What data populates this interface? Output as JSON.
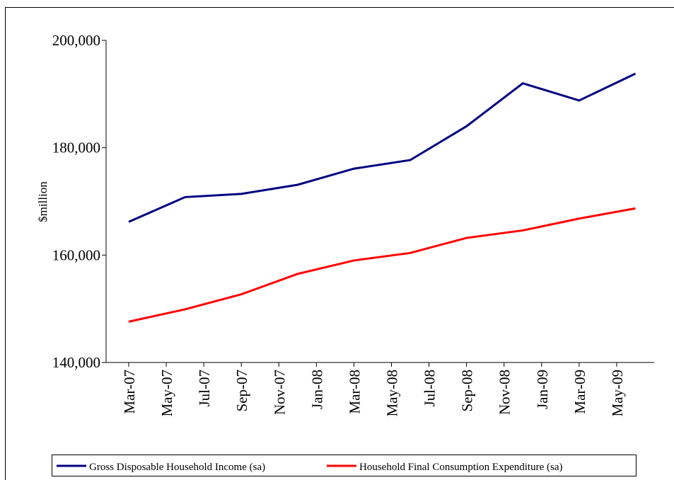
{
  "chart_data": {
    "type": "line",
    "y_label": "$million",
    "x": [
      "Mar-07",
      "Jun-07",
      "Sep-07",
      "Dec-07",
      "Mar-08",
      "Jun-08",
      "Sep-08",
      "Dec-08",
      "Mar-09",
      "Jun-09"
    ],
    "xlim": [
      "Mar-07",
      "Jul-09"
    ],
    "xticks": [
      "Mar-07",
      "May-07",
      "Jul-07",
      "Sep-07",
      "Nov-07",
      "Jan-08",
      "Mar-08",
      "May-08",
      "Jul-08",
      "Sep-08",
      "Nov-08",
      "Jan-09",
      "Mar-09",
      "May-09"
    ],
    "ylim": [
      140000,
      200000
    ],
    "yticks": [
      {
        "value": 140000,
        "label": "140,000"
      },
      {
        "value": 160000,
        "label": "160,000"
      },
      {
        "value": 180000,
        "label": "180,000"
      },
      {
        "value": 200000,
        "label": "200,000"
      }
    ],
    "grid": false,
    "legend": "bottom",
    "series": [
      {
        "name": "Gross Disposable Household Income (sa)",
        "color": "#000080",
        "values": [
          166200,
          170800,
          171400,
          173100,
          176100,
          177700,
          184000,
          192000,
          188800,
          193800
        ]
      },
      {
        "name": "Household Final Consumption Expenditure (sa)",
        "color": "#ff0000",
        "values": [
          147600,
          149900,
          152700,
          156500,
          159000,
          160400,
          163200,
          164600,
          166800,
          168700
        ]
      }
    ]
  }
}
